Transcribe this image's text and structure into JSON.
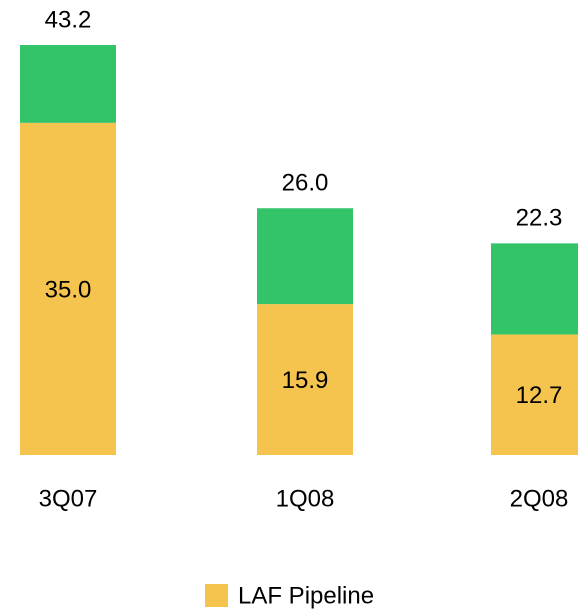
{
  "chart_data": {
    "type": "bar",
    "stacked": true,
    "categories": [
      "3Q07",
      "1Q08",
      "2Q08"
    ],
    "series": [
      {
        "name": "LAF Pipeline",
        "color": "#f5c44e",
        "values": [
          35.0,
          15.9,
          12.7
        ],
        "value_labels": [
          "35.0",
          "15.9",
          "12.7"
        ]
      },
      {
        "color": "#33c46a",
        "values": [
          8.2,
          10.1,
          9.6
        ]
      }
    ],
    "totals": [
      43.2,
      26.0,
      22.3
    ],
    "total_labels": [
      "43.2",
      "26.0",
      "22.3"
    ]
  }
}
